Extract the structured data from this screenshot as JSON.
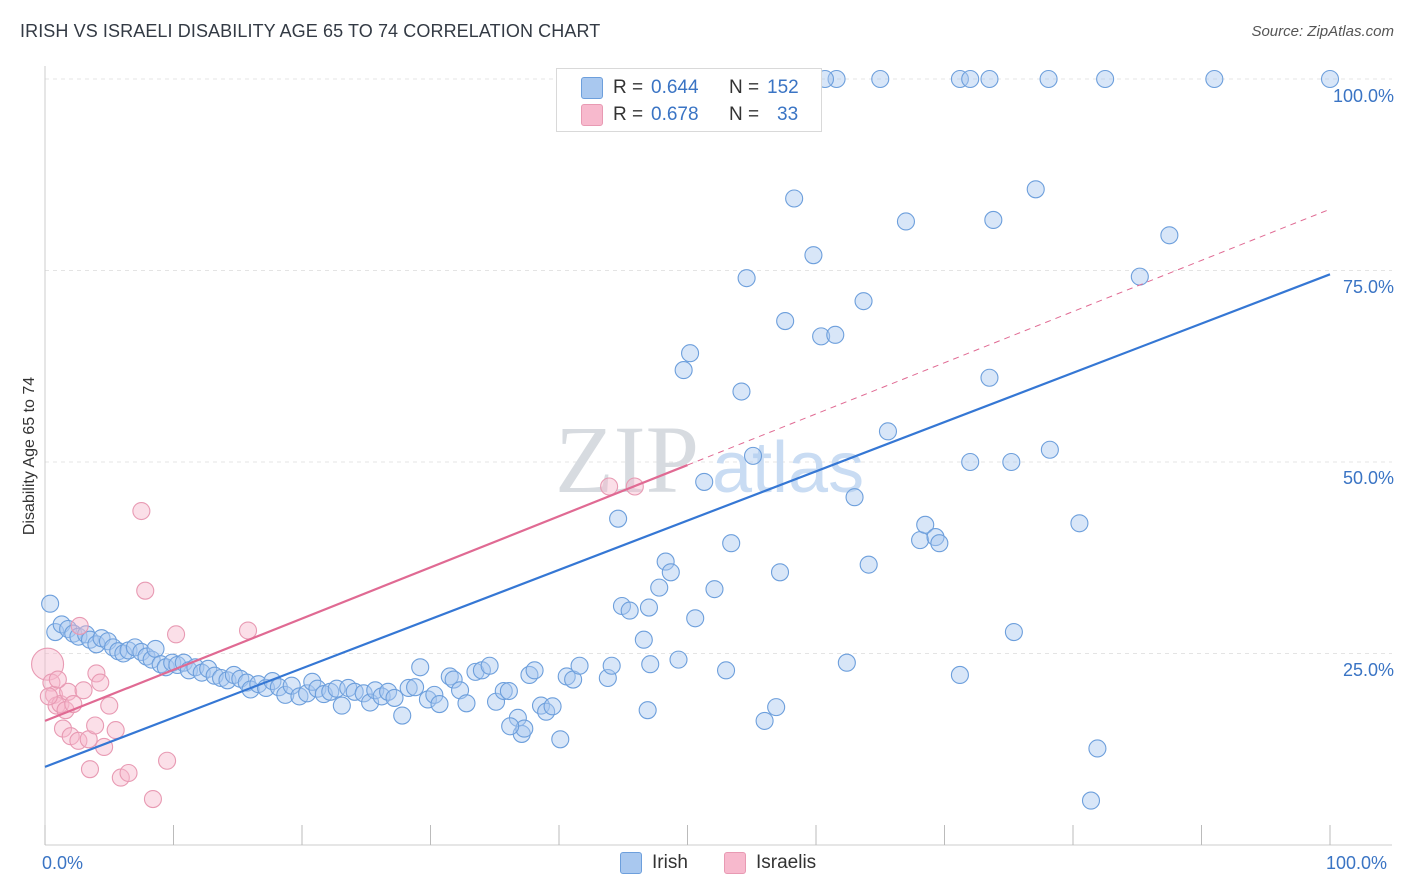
{
  "header": {
    "title": "IRISH VS ISRAELI DISABILITY AGE 65 TO 74 CORRELATION CHART",
    "source": "Source: ZipAtlas.com"
  },
  "watermark": {
    "text1": "ZIP",
    "text2": "atlas"
  },
  "legend": {
    "rows": [
      {
        "r_label": "R =",
        "r_value": "0.644",
        "n_label": "N =",
        "n_value": "152"
      },
      {
        "r_label": "R =",
        "r_value": "0.678",
        "n_label": "N =",
        "n_value": "33"
      }
    ],
    "bottom": [
      {
        "label": "Irish"
      },
      {
        "label": "Israelis"
      }
    ]
  },
  "colors": {
    "irish_fill": "#a9c8ef",
    "irish_stroke": "#6d9fdc",
    "irish_line": "#3577d4",
    "israeli_fill": "#f7b9cd",
    "israeli_stroke": "#e89ab3",
    "israeli_line": "#e06a93",
    "axis_value_text": "#3a74c4"
  },
  "chart_data": {
    "type": "scatter",
    "title": "IRISH VS ISRAELI DISABILITY AGE 65 TO 74 CORRELATION CHART",
    "xlabel": "",
    "ylabel": "Disability Age 65 to 74",
    "xlim": [
      0,
      100
    ],
    "ylim": [
      0,
      100
    ],
    "x_tick_labels": [
      "0.0%",
      "100.0%"
    ],
    "y_tick_labels": [
      "25.0%",
      "50.0%",
      "75.0%",
      "100.0%"
    ],
    "y_ticks": [
      25,
      50,
      75,
      100
    ],
    "grid": true,
    "series": [
      {
        "name": "Irish",
        "r": 0.644,
        "n": 152,
        "trend": {
          "x": [
            0,
            100
          ],
          "y": [
            10.2,
            74.5
          ]
        },
        "points": [
          [
            0.4,
            31.5
          ],
          [
            0.8,
            27.8
          ],
          [
            1.3,
            28.8
          ],
          [
            1.8,
            28.2
          ],
          [
            2.2,
            27.6
          ],
          [
            2.6,
            27.2
          ],
          [
            3.2,
            27.5
          ],
          [
            3.5,
            26.8
          ],
          [
            4.0,
            26.2
          ],
          [
            4.4,
            27.0
          ],
          [
            4.9,
            26.6
          ],
          [
            5.3,
            25.8
          ],
          [
            5.7,
            25.3
          ],
          [
            6.1,
            25.0
          ],
          [
            6.5,
            25.4
          ],
          [
            7.0,
            25.8
          ],
          [
            7.5,
            25.2
          ],
          [
            7.9,
            24.6
          ],
          [
            8.3,
            24.2
          ],
          [
            8.6,
            25.6
          ],
          [
            9.0,
            23.6
          ],
          [
            9.4,
            23.2
          ],
          [
            9.9,
            23.8
          ],
          [
            10.3,
            23.5
          ],
          [
            10.8,
            23.8
          ],
          [
            11.2,
            22.8
          ],
          [
            11.7,
            23.2
          ],
          [
            12.2,
            22.5
          ],
          [
            12.7,
            23.0
          ],
          [
            13.2,
            22.1
          ],
          [
            13.7,
            21.8
          ],
          [
            14.2,
            21.5
          ],
          [
            14.7,
            22.2
          ],
          [
            15.2,
            21.7
          ],
          [
            15.7,
            21.2
          ],
          [
            16.0,
            20.3
          ],
          [
            16.6,
            21.0
          ],
          [
            17.2,
            20.5
          ],
          [
            17.7,
            21.4
          ],
          [
            18.2,
            20.6
          ],
          [
            18.7,
            19.6
          ],
          [
            19.2,
            20.8
          ],
          [
            19.8,
            19.4
          ],
          [
            20.4,
            19.8
          ],
          [
            20.8,
            21.3
          ],
          [
            21.2,
            20.4
          ],
          [
            21.7,
            19.7
          ],
          [
            22.2,
            20.0
          ],
          [
            22.7,
            20.4
          ],
          [
            23.1,
            18.2
          ],
          [
            23.6,
            20.5
          ],
          [
            24.1,
            20.0
          ],
          [
            24.8,
            19.8
          ],
          [
            25.3,
            18.6
          ],
          [
            25.7,
            20.2
          ],
          [
            26.2,
            19.4
          ],
          [
            26.7,
            20.0
          ],
          [
            27.2,
            19.2
          ],
          [
            27.8,
            16.9
          ],
          [
            28.3,
            20.5
          ],
          [
            28.8,
            20.6
          ],
          [
            29.2,
            23.2
          ],
          [
            29.8,
            19.0
          ],
          [
            30.3,
            19.6
          ],
          [
            30.7,
            18.4
          ],
          [
            31.5,
            22.0
          ],
          [
            31.8,
            21.6
          ],
          [
            32.3,
            20.2
          ],
          [
            32.8,
            18.5
          ],
          [
            33.5,
            22.6
          ],
          [
            34.0,
            22.8
          ],
          [
            34.6,
            23.4
          ],
          [
            35.1,
            18.7
          ],
          [
            35.7,
            20.1
          ],
          [
            36.1,
            20.1
          ],
          [
            36.8,
            16.6
          ],
          [
            37.1,
            14.5
          ],
          [
            37.3,
            15.2
          ],
          [
            37.7,
            22.2
          ],
          [
            38.1,
            22.8
          ],
          [
            38.6,
            18.2
          ],
          [
            39.0,
            17.4
          ],
          [
            39.5,
            18.1
          ],
          [
            40.1,
            13.8
          ],
          [
            40.6,
            22.0
          ],
          [
            41.1,
            21.6
          ],
          [
            41.6,
            23.4
          ],
          [
            43.8,
            21.8
          ],
          [
            44.1,
            23.4
          ],
          [
            44.6,
            42.6
          ],
          [
            44.9,
            31.2
          ],
          [
            45.5,
            30.6
          ],
          [
            46.6,
            26.8
          ],
          [
            47.0,
            31.0
          ],
          [
            47.8,
            33.6
          ],
          [
            48.3,
            37.0
          ],
          [
            48.7,
            35.6
          ],
          [
            47.1,
            23.6
          ],
          [
            49.3,
            24.2
          ],
          [
            49.7,
            62.0
          ],
          [
            50.2,
            64.2
          ],
          [
            50.6,
            29.6
          ],
          [
            51.3,
            47.4
          ],
          [
            52.1,
            33.4
          ],
          [
            53.0,
            22.8
          ],
          [
            53.4,
            39.4
          ],
          [
            54.2,
            59.2
          ],
          [
            54.6,
            74.0
          ],
          [
            55.1,
            50.8
          ],
          [
            56.0,
            16.2
          ],
          [
            56.9,
            18.0
          ],
          [
            57.2,
            35.6
          ],
          [
            57.6,
            68.4
          ],
          [
            58.3,
            84.4
          ],
          [
            59.8,
            77.0
          ],
          [
            60.4,
            66.4
          ],
          [
            61.5,
            66.6
          ],
          [
            62.4,
            23.8
          ],
          [
            63.0,
            45.4
          ],
          [
            63.7,
            71.0
          ],
          [
            64.1,
            36.6
          ],
          [
            65.6,
            54.0
          ],
          [
            67.0,
            81.4
          ],
          [
            68.1,
            39.8
          ],
          [
            68.5,
            41.8
          ],
          [
            69.3,
            40.2
          ],
          [
            69.6,
            39.4
          ],
          [
            71.2,
            22.2
          ],
          [
            72.0,
            50.0
          ],
          [
            73.5,
            61.0
          ],
          [
            73.8,
            81.6
          ],
          [
            75.2,
            50.0
          ],
          [
            75.4,
            27.8
          ],
          [
            77.1,
            85.6
          ],
          [
            78.2,
            51.6
          ],
          [
            80.5,
            42.0
          ],
          [
            81.4,
            5.8
          ],
          [
            81.9,
            12.6
          ],
          [
            85.2,
            74.2
          ],
          [
            87.5,
            79.6
          ],
          [
            61.6,
            100.0
          ],
          [
            65.0,
            100.0
          ],
          [
            71.2,
            100.0
          ],
          [
            72.0,
            100.0
          ],
          [
            73.5,
            100.0
          ],
          [
            78.1,
            100.0
          ],
          [
            82.5,
            100.0
          ],
          [
            91.0,
            100.0
          ],
          [
            100.0,
            100.0
          ],
          [
            60.7,
            100.0
          ],
          [
            46.9,
            17.6
          ],
          [
            36.2,
            15.5
          ]
        ]
      },
      {
        "name": "Israelis",
        "r": 0.678,
        "n": 33,
        "trend": {
          "x": [
            0,
            50
          ],
          "y": [
            16.2,
            49.6
          ]
        },
        "trend_dashed_extension": {
          "x": [
            50,
            100
          ],
          "y": [
            49.6,
            83.0
          ]
        },
        "points": [
          [
            0.2,
            23.6
          ],
          [
            0.5,
            21.2
          ],
          [
            0.7,
            19.6
          ],
          [
            0.9,
            18.2
          ],
          [
            1.2,
            18.4
          ],
          [
            1.4,
            15.2
          ],
          [
            1.6,
            17.6
          ],
          [
            1.8,
            20.0
          ],
          [
            2.0,
            14.2
          ],
          [
            2.2,
            18.4
          ],
          [
            2.7,
            28.6
          ],
          [
            2.6,
            13.6
          ],
          [
            3.0,
            20.2
          ],
          [
            3.4,
            13.8
          ],
          [
            3.5,
            9.9
          ],
          [
            3.9,
            15.6
          ],
          [
            4.0,
            22.4
          ],
          [
            4.3,
            21.2
          ],
          [
            4.6,
            12.8
          ],
          [
            5.0,
            18.2
          ],
          [
            5.5,
            15.0
          ],
          [
            5.9,
            8.8
          ],
          [
            6.5,
            9.4
          ],
          [
            7.5,
            43.6
          ],
          [
            7.8,
            33.2
          ],
          [
            8.4,
            6.0
          ],
          [
            9.5,
            11.0
          ],
          [
            10.2,
            27.5
          ],
          [
            15.8,
            28.0
          ],
          [
            43.9,
            46.8
          ],
          [
            45.9,
            46.8
          ],
          [
            0.3,
            19.4
          ],
          [
            1.0,
            21.6
          ]
        ]
      }
    ]
  }
}
